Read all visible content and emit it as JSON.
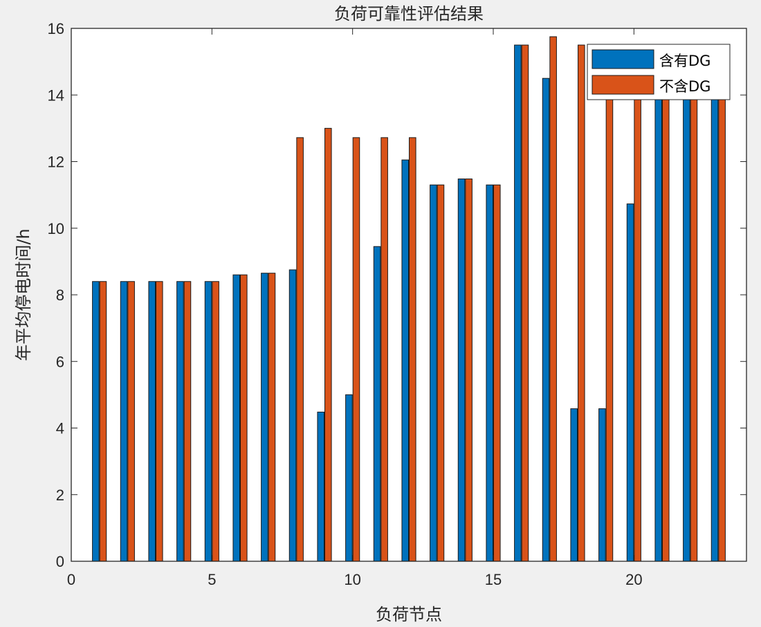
{
  "chart_data": {
    "type": "bar",
    "title": "负荷可靠性评估结果",
    "xlabel": "负荷节点",
    "ylabel": "年平均停电时间/h",
    "xlim": [
      0,
      24
    ],
    "ylim": [
      0,
      16
    ],
    "x_ticks": [
      0,
      5,
      10,
      15,
      20
    ],
    "y_ticks": [
      0,
      2,
      4,
      6,
      8,
      10,
      12,
      14,
      16
    ],
    "grid": false,
    "legend_position": "top-right",
    "x": [
      1,
      2,
      3,
      4,
      5,
      6,
      7,
      8,
      9,
      10,
      11,
      12,
      13,
      14,
      15,
      16,
      17,
      18,
      19,
      20,
      21,
      22,
      23
    ],
    "series": [
      {
        "name": "含有DG",
        "color": "#0072BD",
        "values": [
          8.4,
          8.4,
          8.4,
          8.4,
          8.4,
          8.6,
          8.65,
          8.75,
          4.48,
          5.0,
          9.45,
          12.05,
          11.3,
          11.48,
          11.3,
          15.5,
          14.5,
          4.58,
          4.58,
          10.73,
          14.2,
          14.2,
          14.2
        ]
      },
      {
        "name": "不含DG",
        "color": "#D95319",
        "values": [
          8.4,
          8.4,
          8.4,
          8.4,
          8.4,
          8.6,
          8.65,
          12.72,
          13.0,
          12.72,
          12.72,
          12.72,
          11.3,
          11.48,
          11.3,
          15.5,
          15.75,
          15.5,
          14.2,
          14.2,
          14.2,
          14.2,
          14.2
        ]
      }
    ]
  }
}
